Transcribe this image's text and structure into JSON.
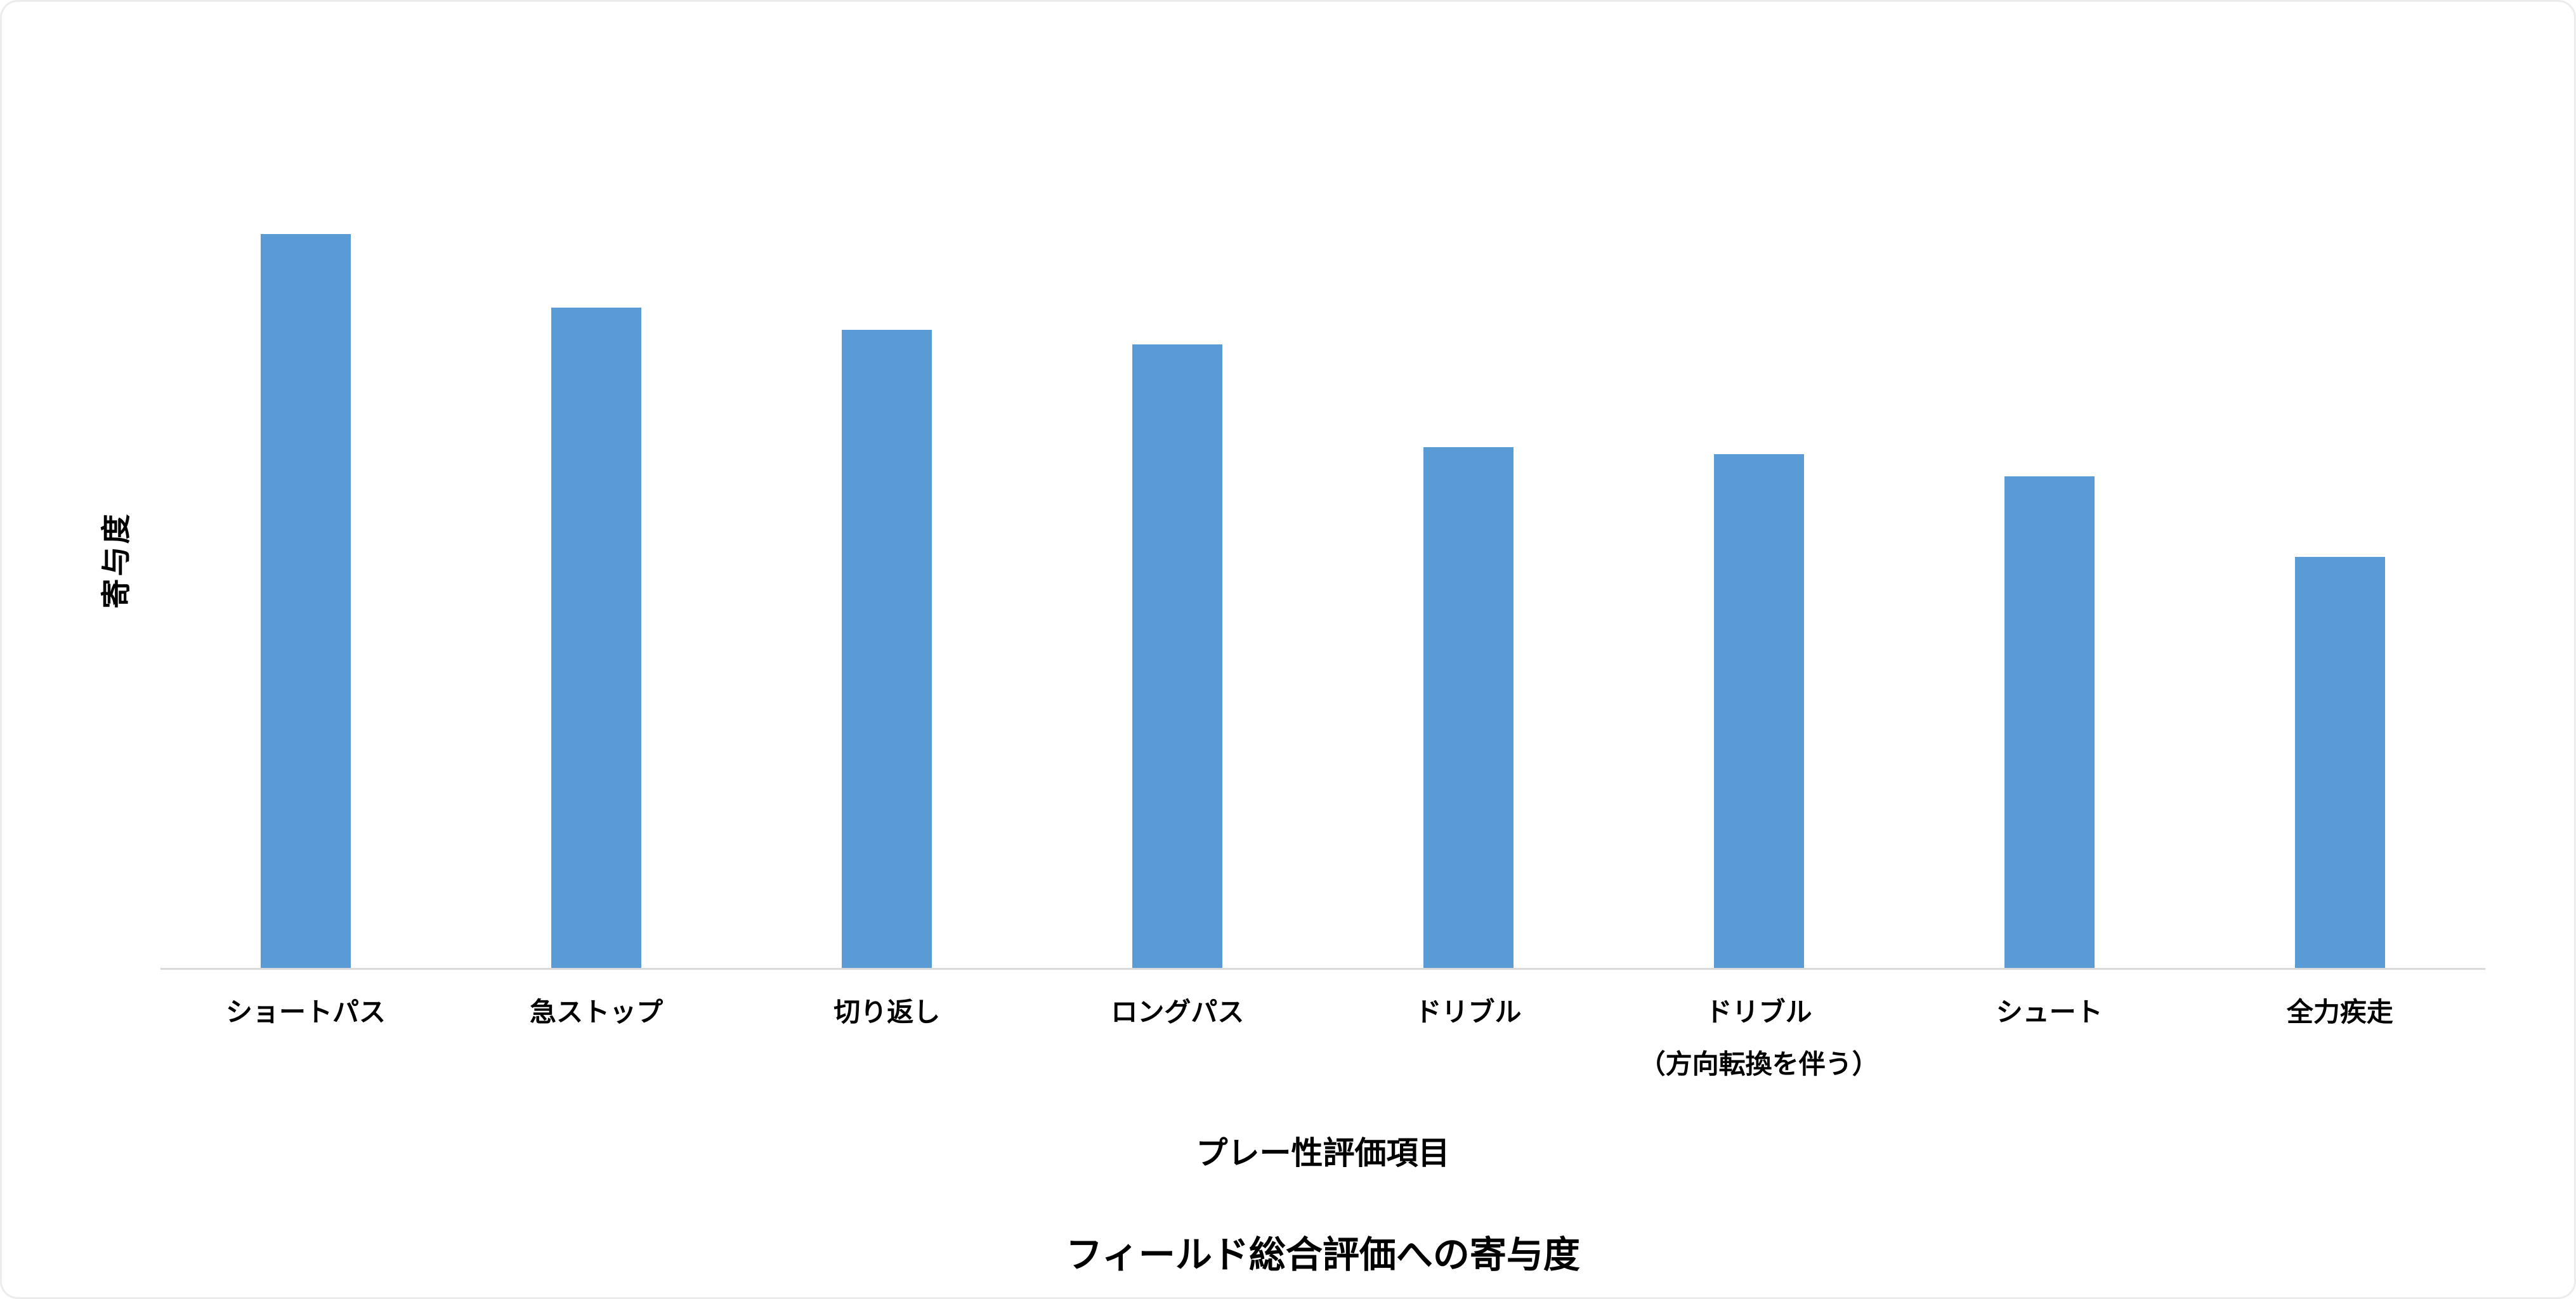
{
  "chart_data": {
    "type": "bar",
    "title": "フィールド総合評価への寄与度",
    "xlabel": "プレー性評価項目",
    "ylabel": "寄与度",
    "categories": [
      [
        "ショートパス"
      ],
      [
        "急ストップ"
      ],
      [
        "切り返し"
      ],
      [
        "ロングパス"
      ],
      [
        "ドリブル"
      ],
      [
        "ドリブル",
        "（方向転換を伴う）"
      ],
      [
        "シュート"
      ],
      [
        "全力疾走"
      ]
    ],
    "values": [
      100,
      90,
      87,
      85,
      71,
      70,
      67,
      56
    ],
    "ylim": [
      0,
      115
    ],
    "bar_color": "#5B9BD5",
    "axis_line_color": "#d9d9d9",
    "grid": false,
    "y_ticks_visible": false,
    "legend": "none"
  }
}
